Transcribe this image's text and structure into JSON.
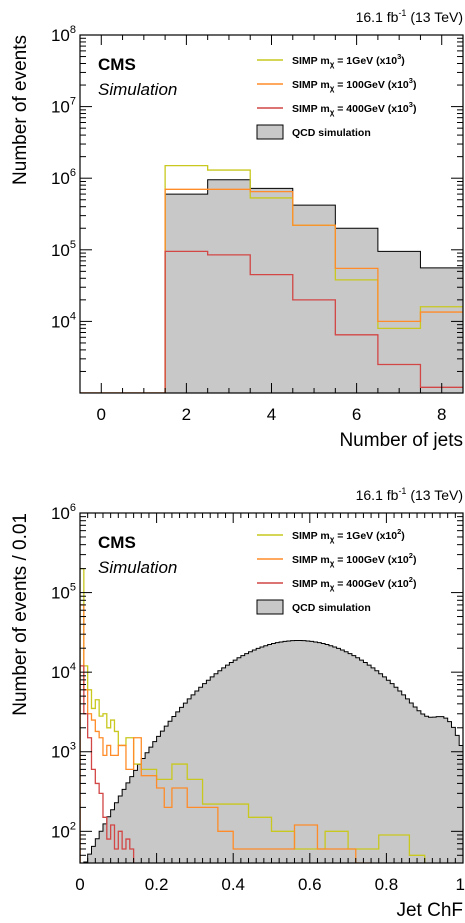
{
  "chart_data": [
    {
      "type": "histogram",
      "lumi_text": "16.1 fb",
      "lumi_sup": "-1",
      "energy_text": " (13 TeV)",
      "experiment": "CMS",
      "subtitle": "Simulation",
      "xlabel": "Number of jets",
      "ylabel": "Number of events",
      "xlim": [
        -0.5,
        8.5
      ],
      "ylim": [
        1000,
        100000000
      ],
      "yscale": "log",
      "x_ticks": [
        "0",
        "2",
        "4",
        "6",
        "8"
      ],
      "y_tick_exponents": [
        "8",
        "7",
        "6",
        "5",
        "4"
      ],
      "legend_placement": "top-right",
      "bin_edges": [
        -0.5,
        0.5,
        1.5,
        2.5,
        3.5,
        4.5,
        5.5,
        6.5,
        7.5,
        8.5
      ],
      "series": [
        {
          "name": "QCD simulation",
          "kind": "filled",
          "color": "#c8c8c8",
          "edge": "#000000",
          "values": [
            0,
            0,
            600000,
            950000,
            720000,
            420000,
            200000,
            95000,
            56000
          ]
        },
        {
          "name": "SIMP m_χ = 1GeV (x10^3)",
          "color": "#c8c81e",
          "values": [
            0,
            0,
            1500000,
            1300000,
            530000,
            220000,
            38000,
            8000,
            16000
          ]
        },
        {
          "name": "SIMP m_χ = 100GeV (x10^3)",
          "color": "#ff8c28",
          "values": [
            0,
            0,
            700000,
            700000,
            650000,
            220000,
            55000,
            10000,
            13500
          ]
        },
        {
          "name": "SIMP m_χ = 400GeV (x10^3)",
          "color": "#d24646",
          "values": [
            0,
            0,
            95000,
            85000,
            45000,
            20000,
            6500,
            2500,
            1200
          ]
        }
      ],
      "legend": [
        {
          "prefix": "SIMP m",
          "sub": "χ",
          "mid": " = 1GeV (x10",
          "sup": "3",
          "suffix": ")"
        },
        {
          "prefix": "SIMP m",
          "sub": "χ",
          "mid": " = 100GeV (x10",
          "sup": "3",
          "suffix": ")"
        },
        {
          "prefix": "SIMP m",
          "sub": "χ",
          "mid": " = 400GeV (x10",
          "sup": "3",
          "suffix": ")"
        },
        {
          "prefix": "QCD simulation",
          "sub": "",
          "mid": "",
          "sup": "",
          "suffix": ""
        }
      ]
    },
    {
      "type": "histogram",
      "lumi_text": "16.1 fb",
      "lumi_sup": "-1",
      "energy_text": " (13 TeV)",
      "experiment": "CMS",
      "subtitle": "Simulation",
      "xlabel": "Jet ChF",
      "ylabel": "Number of events / 0.01",
      "xlim": [
        0,
        1
      ],
      "ylim": [
        40,
        1000000
      ],
      "yscale": "log",
      "x_ticks": [
        "0",
        "0.2",
        "0.4",
        "0.6",
        "0.8",
        "1"
      ],
      "y_tick_exponents": [
        "6",
        "5",
        "4",
        "3",
        "2"
      ],
      "legend_placement": "top-right",
      "qcd_gaussian": {
        "peak": 25000,
        "mu": 0.57,
        "sigma": 0.155,
        "bump_peak": 1500,
        "bump_mu": 0.955,
        "bump_sigma": 0.03,
        "floor": 30
      },
      "series": [
        {
          "name": "QCD simulation",
          "kind": "filled",
          "color": "#c8c8c8",
          "edge": "#000000"
        },
        {
          "name": "SIMP m_χ = 1GeV (x10^2)",
          "color": "#c8c81e",
          "edges": [
            0,
            0.01,
            0.02,
            0.03,
            0.04,
            0.05,
            0.06,
            0.07,
            0.08,
            0.09,
            0.1,
            0.12,
            0.14,
            0.16,
            0.2,
            0.24,
            0.28,
            0.32,
            0.36,
            0.44,
            0.5,
            0.56,
            0.64,
            0.7,
            0.78,
            0.86,
            0.9
          ],
          "values": [
            200000,
            12000,
            6000,
            3500,
            4500,
            2800,
            3000,
            2000,
            2500,
            1800,
            1200,
            1500,
            700,
            600,
            450,
            700,
            450,
            220,
            220,
            150,
            100,
            60,
            100,
            60,
            90,
            50
          ]
        },
        {
          "name": "SIMP m_χ = 100GeV (x10^2)",
          "color": "#ff8c28",
          "edges": [
            0,
            0.01,
            0.02,
            0.03,
            0.04,
            0.05,
            0.06,
            0.07,
            0.08,
            0.1,
            0.12,
            0.14,
            0.16,
            0.18,
            0.2,
            0.22,
            0.24,
            0.28,
            0.32,
            0.36,
            0.4,
            0.48,
            0.56,
            0.62,
            0.68,
            0.72,
            0.76
          ],
          "values": [
            70000,
            6000,
            3000,
            2500,
            1800,
            1500,
            900,
            1200,
            900,
            1200,
            600,
            1500,
            500,
            500,
            350,
            200,
            350,
            200,
            200,
            100,
            60,
            60,
            120,
            60,
            60,
            40
          ]
        },
        {
          "name": "SIMP m_χ = 400GeV (x10^2)",
          "color": "#d24646",
          "edges": [
            0,
            0.01,
            0.02,
            0.03,
            0.04,
            0.05,
            0.06,
            0.07,
            0.08,
            0.09,
            0.1,
            0.11,
            0.12,
            0.13,
            0.14
          ],
          "values": [
            12000,
            3000,
            1500,
            600,
            400,
            300,
            150,
            80,
            120,
            60,
            100,
            60,
            80,
            60
          ]
        }
      ],
      "legend": [
        {
          "prefix": "SIMP m",
          "sub": "χ",
          "mid": " = 1GeV (x10",
          "sup": "2",
          "suffix": ")"
        },
        {
          "prefix": "SIMP m",
          "sub": "χ",
          "mid": " = 100GeV (x10",
          "sup": "2",
          "suffix": ")"
        },
        {
          "prefix": "SIMP m",
          "sub": "χ",
          "mid": " = 400GeV (x10",
          "sup": "2",
          "suffix": ")"
        },
        {
          "prefix": "QCD simulation",
          "sub": "",
          "mid": "",
          "sup": "",
          "suffix": ""
        }
      ]
    }
  ]
}
